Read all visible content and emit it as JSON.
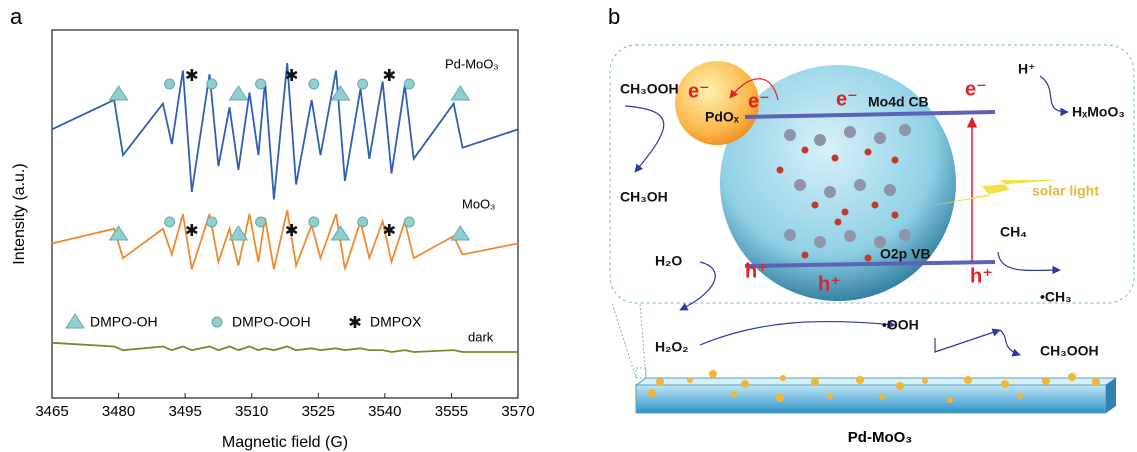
{
  "chart_data": {
    "type": "line",
    "panel_label": "a",
    "xlabel": "Magnetic field (G)",
    "ylabel": "Intensity (a.u.)",
    "xlim": [
      3465,
      3570
    ],
    "xticks": [
      3465,
      3480,
      3495,
      3510,
      3525,
      3540,
      3555,
      3570
    ],
    "ylim": [
      0,
      10
    ],
    "x": [
      3465,
      3479,
      3481,
      3490,
      3492,
      3494.5,
      3496.5,
      3500.5,
      3502.5,
      3505,
      3507,
      3509.5,
      3511.5,
      3513,
      3515,
      3518,
      3520,
      3523.5,
      3525.5,
      3529,
      3531,
      3534.5,
      3536.5,
      3539.5,
      3541.5,
      3544.5,
      3546.5,
      3555.5,
      3557.5,
      3570
    ],
    "series": [
      {
        "name": "Pd-MoO₃",
        "color": "#2f5fb3",
        "values": [
          7.3,
          8.1,
          6.6,
          8.0,
          6.9,
          8.9,
          5.6,
          8.8,
          6.3,
          7.9,
          6.2,
          8.3,
          6.6,
          8.6,
          5.4,
          9.1,
          5.8,
          8.1,
          6.6,
          8.9,
          5.9,
          8.4,
          6.5,
          8.6,
          6.1,
          8.5,
          6.5,
          8.0,
          6.8,
          7.3
        ]
      },
      {
        "name": "MoO₃",
        "color": "#f08a30",
        "values": [
          4.2,
          4.6,
          3.8,
          4.6,
          3.9,
          5.0,
          3.5,
          5.0,
          3.7,
          4.6,
          3.6,
          5.0,
          3.7,
          4.9,
          3.5,
          5.1,
          3.6,
          4.7,
          3.8,
          5.0,
          3.5,
          4.8,
          3.8,
          4.8,
          3.7,
          4.8,
          3.8,
          4.4,
          3.9,
          4.2
        ]
      },
      {
        "name": "dark",
        "color": "#7a8a2a",
        "values": [
          1.5,
          1.4,
          1.3,
          1.4,
          1.3,
          1.4,
          1.3,
          1.4,
          1.3,
          1.4,
          1.3,
          1.4,
          1.3,
          1.35,
          1.3,
          1.4,
          1.3,
          1.35,
          1.3,
          1.35,
          1.3,
          1.35,
          1.3,
          1.3,
          1.25,
          1.3,
          1.25,
          1.3,
          1.25,
          1.25
        ]
      }
    ],
    "annotations": [
      {
        "name": "DMPO-OH",
        "shape": "triangle",
        "color": "#8fcfd0",
        "x": [
          3480,
          3507,
          3530,
          3557
        ]
      },
      {
        "name": "DMPO-OOH",
        "shape": "circle",
        "color": "#8fcfd0",
        "x": [
          3491.5,
          3501,
          3512,
          3524,
          3535,
          3545.5
        ]
      },
      {
        "name": "DMPOX",
        "shape": "asterisk",
        "color": "#111111",
        "x": [
          3496.5,
          3519,
          3541
        ]
      }
    ]
  },
  "diagram": {
    "panel_label": "b",
    "labels": [
      "CH₃OOH",
      "CH₃OH",
      "e⁻",
      "PdOₓ",
      "e⁻",
      "e⁻",
      "Mo4d CB",
      "H⁺",
      "HₓMoO₃",
      "e⁻",
      "solar light",
      "O2p VB",
      "CH₄",
      "h⁺",
      "h⁺",
      "h⁺",
      "H₂O",
      "•CH₃",
      "•OOH",
      "H₂O₂",
      "CH₃OOH"
    ],
    "caption": "Pd-MoO₃"
  }
}
